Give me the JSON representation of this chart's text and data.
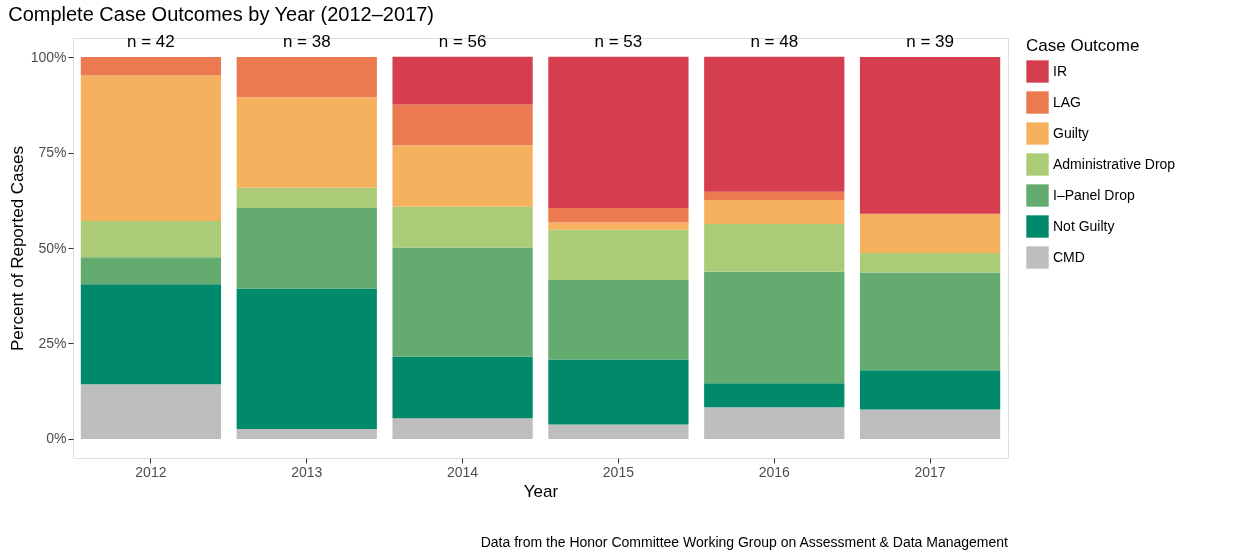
{
  "chart_data": {
    "type": "bar",
    "title": "Complete Case Outcomes by Year (2012–2017)",
    "xlabel": "Year",
    "ylabel": "Percent of Reported Cases",
    "legend_title": "Case Outcome",
    "categories": [
      "2012",
      "2013",
      "2014",
      "2015",
      "2016",
      "2017"
    ],
    "stacked": true,
    "series": [
      {
        "name": "CMD",
        "color": "#bebebe",
        "values": [
          14.3,
          2.6,
          5.4,
          3.8,
          8.3,
          7.7
        ]
      },
      {
        "name": "Not Guilty",
        "color": "#00896b",
        "values": [
          26.2,
          36.8,
          16.1,
          17.0,
          6.3,
          10.3
        ]
      },
      {
        "name": "I–Panel Drop",
        "color": "#63ab6f",
        "values": [
          7.1,
          21.1,
          28.6,
          20.8,
          29.2,
          25.6
        ]
      },
      {
        "name": "Administrative Drop",
        "color": "#abcb77",
        "values": [
          9.5,
          5.3,
          10.7,
          13.2,
          12.5,
          5.1
        ]
      },
      {
        "name": "Guilty",
        "color": "#f6b15f",
        "values": [
          38.1,
          23.7,
          16.1,
          1.9,
          6.3,
          10.3
        ]
      },
      {
        "name": "LAG",
        "color": "#ec7a50",
        "values": [
          4.8,
          10.5,
          10.7,
          3.8,
          2.1,
          0
        ]
      },
      {
        "name": "IR",
        "color": "#d53e4f",
        "values": [
          0,
          0,
          12.5,
          39.6,
          35.4,
          41.0
        ]
      }
    ],
    "ylim": [
      -5,
      105
    ],
    "yticks": [
      {
        "value": 0,
        "label": "0%"
      },
      {
        "value": 25,
        "label": "25%"
      },
      {
        "value": 50,
        "label": "50%"
      },
      {
        "value": 75,
        "label": "75%"
      },
      {
        "value": 100,
        "label": "100%"
      }
    ],
    "grid": true,
    "legend": "right",
    "annotations": [
      {
        "text": "n = 42",
        "x": "2012",
        "y": 100
      },
      {
        "text": "n = 38",
        "x": "2013",
        "y": 100
      },
      {
        "text": "n = 56",
        "x": "2014",
        "y": 100
      },
      {
        "text": "n = 53",
        "x": "2015",
        "y": 100
      },
      {
        "text": "n = 48",
        "x": "2016",
        "y": 100
      },
      {
        "text": "n = 39",
        "x": "2017",
        "y": 100
      },
      "Data from the Honor Committee Working Group on Assessment & Data Management"
    ]
  }
}
